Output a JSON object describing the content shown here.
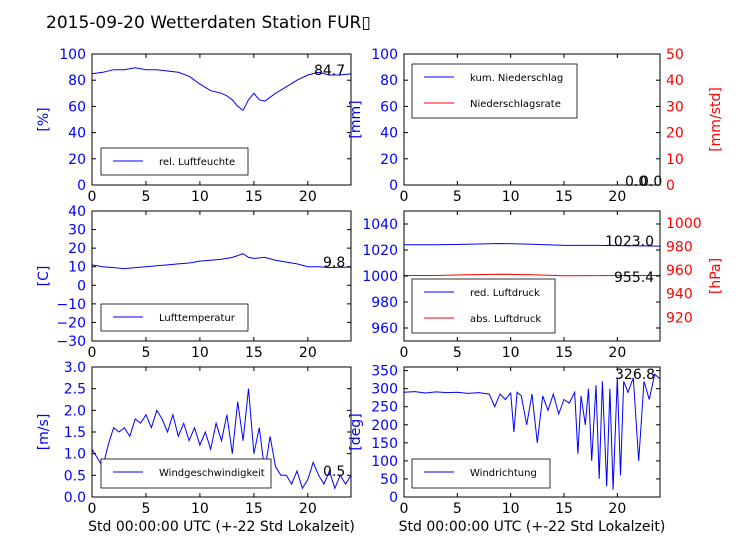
{
  "title": "2015-09-20 Wetterdaten Station FUR▯",
  "colors": {
    "primary": "#0000ff",
    "secondary": "#ff0000",
    "text": "#000000"
  },
  "chart_data": [
    {
      "type": "line",
      "xlabel": "",
      "ylabel": "[%]",
      "xlim": [
        0,
        24
      ],
      "ylim": [
        0,
        100
      ],
      "xticks": [
        "0",
        "5",
        "10",
        "15",
        "20"
      ],
      "yticks": [
        "0",
        "20",
        "40",
        "60",
        "80",
        "100"
      ],
      "legend": "lower-left",
      "annotation": "84.7",
      "series": [
        {
          "name": "rel. Luftfeuchte",
          "color": "#0000ff",
          "x": [
            0,
            1,
            2,
            3,
            4,
            5,
            6,
            7,
            8,
            9,
            9.5,
            10,
            11,
            12,
            12.5,
            13,
            13.5,
            14,
            14.5,
            15,
            15.5,
            16,
            17,
            18,
            19,
            20,
            21,
            22,
            23,
            24
          ],
          "y": [
            85,
            86,
            88,
            88,
            89.5,
            88,
            88,
            87,
            86,
            83,
            80,
            77,
            72,
            70,
            68,
            65,
            60,
            57,
            65,
            70,
            65,
            64,
            70,
            75,
            80,
            84,
            86,
            84,
            84,
            85
          ]
        }
      ]
    },
    {
      "type": "line",
      "xlabel": "",
      "ylabel": "[mm]",
      "ylabel_right": "[mm/std]",
      "xlim": [
        0,
        24
      ],
      "ylim": [
        0,
        100
      ],
      "ylim_right": [
        0,
        50
      ],
      "xticks": [
        "0",
        "5",
        "10",
        "15",
        "20"
      ],
      "yticks": [
        "0",
        "20",
        "40",
        "60",
        "80",
        "100"
      ],
      "yticks_right": [
        "0",
        "10",
        "20",
        "30",
        "40",
        "50"
      ],
      "legend": "upper-left",
      "annotation": "0.0",
      "annotation2": "0.0",
      "series": [
        {
          "name": "kum. Niederschlag",
          "color": "#0000ff",
          "x": [
            0,
            24
          ],
          "y": [
            0,
            0
          ]
        },
        {
          "name": "Niederschlagsrate",
          "color": "#ff0000",
          "x": [
            0,
            24
          ],
          "y": [
            0,
            0
          ]
        }
      ]
    },
    {
      "type": "line",
      "xlabel": "",
      "ylabel": "[C]",
      "xlim": [
        0,
        24
      ],
      "ylim": [
        -30,
        40
      ],
      "xticks": [
        "0",
        "5",
        "10",
        "15",
        "20"
      ],
      "yticks": [
        "−30",
        "−20",
        "−10",
        "0",
        "10",
        "20",
        "30",
        "40"
      ],
      "legend": "lower-left",
      "annotation": "9.8",
      "series": [
        {
          "name": "Lufttemperatur",
          "color": "#0000ff",
          "x": [
            0,
            1,
            2,
            3,
            4,
            5,
            6,
            7,
            8,
            9,
            10,
            11,
            12,
            13,
            13.5,
            14,
            14.5,
            15,
            16,
            17,
            18,
            19,
            20,
            21,
            22,
            23,
            24
          ],
          "y": [
            11,
            10,
            9.5,
            9,
            9.5,
            10,
            10.5,
            11,
            11.5,
            12,
            13,
            13.5,
            14,
            15,
            16,
            17,
            15,
            14.5,
            15,
            13.5,
            12.5,
            11.5,
            10,
            10,
            9.5,
            9.7,
            9.8
          ]
        }
      ]
    },
    {
      "type": "line",
      "xlabel": "",
      "ylabel": "",
      "ylabel_right": "[hPa]",
      "xlim": [
        0,
        24
      ],
      "ylim": [
        950,
        1050
      ],
      "ylim_right": [
        900,
        1010
      ],
      "xticks": [
        "0",
        "5",
        "10",
        "15",
        "20"
      ],
      "yticks": [
        "960",
        "980",
        "1000",
        "1020",
        "1040"
      ],
      "yticks_right": [
        "920",
        "940",
        "960",
        "980",
        "1000"
      ],
      "legend": "lower-left",
      "annotation": "1023.0",
      "annotation2": "955.4",
      "series": [
        {
          "name": "red. Luftdruck",
          "color": "#0000ff",
          "x": [
            0,
            3,
            6,
            9,
            12,
            15,
            18,
            21,
            24
          ],
          "y": [
            1024,
            1024,
            1024.5,
            1025,
            1024.5,
            1023.5,
            1023.5,
            1023.3,
            1023
          ]
        },
        {
          "name": "abs. Luftdruck",
          "color": "#ff0000",
          "axis": "right",
          "x": [
            0,
            3,
            6,
            9,
            12,
            15,
            18,
            21,
            24
          ],
          "y": [
            955.4,
            955.4,
            956,
            956.5,
            956,
            955.2,
            955.3,
            955.4,
            955.4
          ]
        }
      ]
    },
    {
      "type": "line",
      "xlabel": "Std 00:00:00 UTC (+-22 Std Lokalzeit)",
      "ylabel": "[m/s]",
      "xlim": [
        0,
        24
      ],
      "ylim": [
        0,
        3
      ],
      "xticks": [
        "0",
        "5",
        "10",
        "15",
        "20"
      ],
      "yticks": [
        "0.0",
        "0.5",
        "1.0",
        "1.5",
        "2.0",
        "2.5",
        "3.0"
      ],
      "legend": "lower-left",
      "annotation": "0.5",
      "series": [
        {
          "name": "Windgeschwindigkeit",
          "color": "#0000ff",
          "x": [
            0,
            0.5,
            1,
            1.5,
            2,
            2.5,
            3,
            3.5,
            4,
            4.5,
            5,
            5.5,
            6,
            6.5,
            7,
            7.5,
            8,
            8.5,
            9,
            9.5,
            10,
            10.5,
            11,
            11.5,
            12,
            12.5,
            13,
            13.5,
            14,
            14.5,
            15,
            15.5,
            16,
            16.5,
            17,
            17.5,
            18,
            18.5,
            19,
            19.5,
            20,
            20.5,
            21,
            21.5,
            22,
            22.5,
            23,
            23.5,
            24
          ],
          "y": [
            1.1,
            0.9,
            0.7,
            1.2,
            1.6,
            1.5,
            1.6,
            1.4,
            1.8,
            1.7,
            1.9,
            1.6,
            2.0,
            1.8,
            1.5,
            1.9,
            1.4,
            1.7,
            1.3,
            1.6,
            1.2,
            1.5,
            1.1,
            1.7,
            1.3,
            1.9,
            1.0,
            2.2,
            1.3,
            2.5,
            1.0,
            1.6,
            0.6,
            1.4,
            0.7,
            0.5,
            0.5,
            0.3,
            0.6,
            0.2,
            0.4,
            0.8,
            0.5,
            0.3,
            0.6,
            0.2,
            0.5,
            0.3,
            0.5
          ]
        }
      ]
    },
    {
      "type": "line",
      "xlabel": "Std 00:00:00 UTC (+-22 Std Lokalzeit)",
      "ylabel": "[deg]",
      "xlim": [
        0,
        24
      ],
      "ylim": [
        0,
        360
      ],
      "xticks": [
        "0",
        "5",
        "10",
        "15",
        "20"
      ],
      "yticks": [
        "0",
        "50",
        "100",
        "150",
        "200",
        "250",
        "300",
        "350"
      ],
      "legend": "lower-left",
      "annotation": "326.8",
      "series": [
        {
          "name": "Windrichtung",
          "color": "#0000ff",
          "x": [
            0,
            1,
            2,
            3,
            4,
            5,
            6,
            7,
            8,
            8.5,
            9,
            9.5,
            10,
            10.3,
            10.6,
            11,
            11.5,
            12,
            12.5,
            13,
            13.5,
            14,
            14.5,
            15,
            15.5,
            16,
            16.3,
            16.6,
            17,
            17.3,
            17.6,
            18,
            18.3,
            18.6,
            19,
            19.3,
            19.6,
            20,
            20.3,
            20.6,
            21,
            21.5,
            22,
            22.5,
            23,
            23.5,
            24
          ],
          "y": [
            290,
            292,
            288,
            291,
            289,
            290,
            287,
            289,
            285,
            250,
            285,
            270,
            288,
            180,
            290,
            280,
            200,
            285,
            150,
            280,
            240,
            285,
            230,
            270,
            260,
            290,
            120,
            280,
            200,
            300,
            100,
            310,
            50,
            320,
            30,
            300,
            20,
            330,
            60,
            320,
            290,
            330,
            100,
            320,
            270,
            340,
            327
          ]
        }
      ]
    }
  ]
}
